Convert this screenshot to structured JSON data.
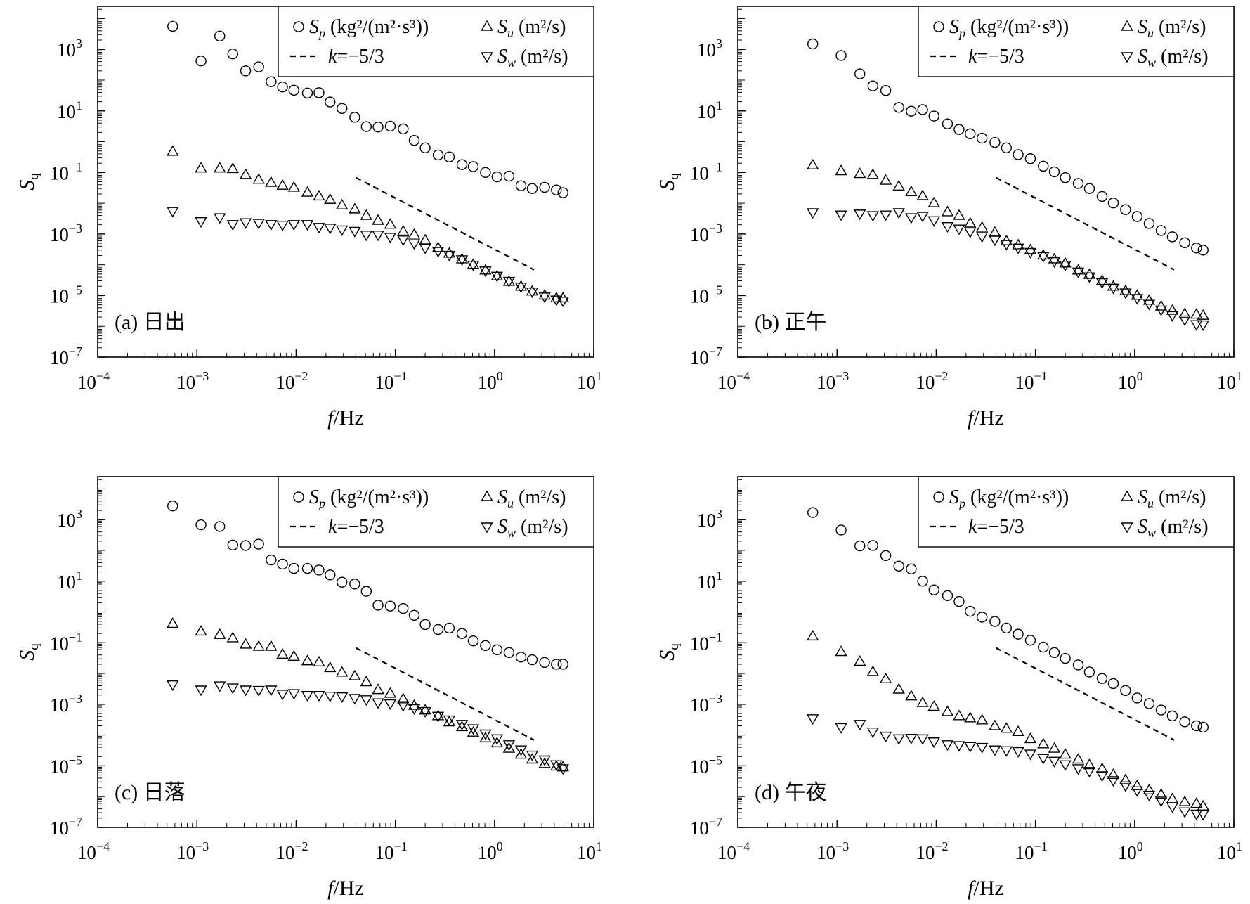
{
  "colors": {
    "marker": "#000000",
    "axes": "#000000",
    "background": "#ffffff"
  },
  "chart_data": [
    {
      "type": "scatter",
      "panel_label": "(a) 日出",
      "xscale": "log",
      "yscale": "log",
      "xlim": [
        0.0001,
        10
      ],
      "ylim": [
        1e-07,
        25000.0
      ],
      "xlabel": {
        "italic": "f",
        "text": "/Hz"
      },
      "ylabel": {
        "symbol": "S",
        "subscript": "q"
      },
      "x_ticks": [
        0.0001,
        0.001,
        0.01,
        0.1,
        1,
        10
      ],
      "y_ticks": [
        1e-07,
        1e-05,
        0.001,
        0.1,
        10,
        1000
      ],
      "grid": false,
      "legend_position": "top-right",
      "x": [
        0.00057,
        0.0011,
        0.0017,
        0.0023,
        0.0031,
        0.0042,
        0.0056,
        0.0073,
        0.0095,
        0.013,
        0.017,
        0.022,
        0.029,
        0.039,
        0.051,
        0.067,
        0.089,
        0.12,
        0.155,
        0.2,
        0.27,
        0.35,
        0.47,
        0.61,
        0.81,
        1.06,
        1.4,
        1.85,
        2.4,
        3.2,
        4.2,
        4.9
      ],
      "series": [
        {
          "symbol": "S",
          "subscript": "p",
          "unit": "(kg²/(m²·s³))",
          "marker": "circle",
          "values": [
            5600,
            420,
            2700,
            710,
            200,
            270,
            89,
            60,
            47,
            38,
            39,
            19.5,
            12,
            6.2,
            3.1,
            3.0,
            3.2,
            2.6,
            1.1,
            0.63,
            0.37,
            0.32,
            0.18,
            0.155,
            0.1,
            0.072,
            0.076,
            0.037,
            0.03,
            0.033,
            0.027,
            0.022
          ]
        },
        {
          "symbol": "S",
          "subscript": "u",
          "unit": "(m²/s)",
          "marker": "triangle-up",
          "values": [
            0.47,
            0.135,
            0.135,
            0.129,
            0.083,
            0.058,
            0.046,
            0.037,
            0.032,
            0.022,
            0.0166,
            0.0129,
            0.0085,
            0.0063,
            0.0039,
            0.0027,
            0.002,
            0.0012,
            0.00095,
            0.00062,
            0.00035,
            0.00023,
            0.00015,
            0.0001,
            6.5e-05,
            4.2e-05,
            2.8e-05,
            1.95e-05,
            1.35e-05,
            1e-05,
            8.1e-06,
            8.1e-06
          ]
        },
        {
          "symbol": "S",
          "subscript": "w",
          "unit": "(m²/s)",
          "marker": "triangle-down",
          "values": [
            0.0056,
            0.0026,
            0.0035,
            0.0021,
            0.0024,
            0.0023,
            0.0021,
            0.002,
            0.0021,
            0.0021,
            0.0017,
            0.0016,
            0.0014,
            0.00126,
            0.00095,
            0.00095,
            0.00081,
            0.00066,
            0.0005,
            0.00036,
            0.00028,
            0.00021,
            0.00015,
            0.0001,
            6.5e-05,
            4.4e-05,
            3e-05,
            1.95e-05,
            1.35e-05,
            9.3e-06,
            7.4e-06,
            6.8e-06
          ]
        }
      ],
      "reference_line": {
        "symbol": "k",
        "text": "=−5/3",
        "x": [
          0.04,
          2.5
        ],
        "y": [
          0.068,
          6.9e-05
        ],
        "style": "dashed"
      }
    },
    {
      "type": "scatter",
      "panel_label": "(b) 正午",
      "xscale": "log",
      "yscale": "log",
      "xlim": [
        0.0001,
        10
      ],
      "ylim": [
        1e-07,
        25000.0
      ],
      "xlabel": {
        "italic": "f",
        "text": "/Hz"
      },
      "ylabel": {
        "symbol": "S",
        "subscript": "q"
      },
      "x_ticks": [
        0.0001,
        0.001,
        0.01,
        0.1,
        1,
        10
      ],
      "y_ticks": [
        1e-07,
        1e-05,
        0.001,
        0.1,
        10,
        1000
      ],
      "grid": false,
      "legend_position": "top-right",
      "x": [
        0.00057,
        0.0011,
        0.0017,
        0.0023,
        0.0031,
        0.0042,
        0.0056,
        0.0073,
        0.0095,
        0.013,
        0.017,
        0.022,
        0.029,
        0.039,
        0.051,
        0.067,
        0.089,
        0.12,
        0.155,
        0.2,
        0.27,
        0.35,
        0.47,
        0.61,
        0.81,
        1.06,
        1.4,
        1.85,
        2.4,
        3.2,
        4.2,
        4.9
      ],
      "series": [
        {
          "symbol": "S",
          "subscript": "p",
          "unit": "(kg²/(m²·s³))",
          "marker": "circle",
          "values": [
            1500,
            630,
            160,
            65,
            46,
            13,
            9.8,
            11,
            6.8,
            3.8,
            2.5,
            1.8,
            1.3,
            0.95,
            0.63,
            0.38,
            0.28,
            0.16,
            0.105,
            0.068,
            0.044,
            0.03,
            0.0166,
            0.0102,
            0.0062,
            0.0037,
            0.0022,
            0.0013,
            0.00081,
            0.00052,
            0.00035,
            0.0003
          ]
        },
        {
          "symbol": "S",
          "subscript": "u",
          "unit": "(m²/s)",
          "marker": "triangle-up",
          "values": [
            0.17,
            0.11,
            0.089,
            0.083,
            0.054,
            0.035,
            0.023,
            0.017,
            0.01,
            0.0051,
            0.0039,
            0.0022,
            0.0016,
            0.0011,
            0.00058,
            0.00043,
            0.0003,
            0.0002,
            0.00015,
            0.00011,
            6.5e-05,
            4.7e-05,
            3e-05,
            1.95e-05,
            1.4e-05,
            9.8e-06,
            6.8e-06,
            4.4e-06,
            3.2e-06,
            2.5e-06,
            2.4e-06,
            2.2e-06
          ]
        },
        {
          "symbol": "S",
          "subscript": "w",
          "unit": "(m²/s)",
          "marker": "triangle-down",
          "values": [
            0.0051,
            0.0043,
            0.0046,
            0.0041,
            0.0043,
            0.0051,
            0.0035,
            0.0039,
            0.0028,
            0.0018,
            0.0015,
            0.0012,
            0.00085,
            0.00066,
            0.00047,
            0.00036,
            0.00026,
            0.00019,
            0.00013,
            0.0001,
            6e-05,
            4.2e-05,
            2.7e-05,
            1.8e-05,
            1.26e-05,
            8.3e-06,
            5.4e-06,
            3.5e-06,
            2.3e-06,
            1.66e-06,
            1.17e-06,
            1.15e-06
          ]
        }
      ],
      "reference_line": {
        "symbol": "k",
        "text": "=−5/3",
        "x": [
          0.04,
          2.5
        ],
        "y": [
          0.068,
          6.9e-05
        ],
        "style": "dashed"
      }
    },
    {
      "type": "scatter",
      "panel_label": "(c) 日落",
      "xscale": "log",
      "yscale": "log",
      "xlim": [
        0.0001,
        10
      ],
      "ylim": [
        1e-07,
        25000.0
      ],
      "xlabel": {
        "italic": "f",
        "text": "/Hz"
      },
      "ylabel": {
        "symbol": "S",
        "subscript": "q"
      },
      "x_ticks": [
        0.0001,
        0.001,
        0.01,
        0.1,
        1,
        10
      ],
      "y_ticks": [
        1e-07,
        1e-05,
        0.001,
        0.1,
        10,
        1000
      ],
      "grid": false,
      "legend_position": "top-right",
      "x": [
        0.00057,
        0.0011,
        0.0017,
        0.0023,
        0.0031,
        0.0042,
        0.0056,
        0.0073,
        0.0095,
        0.013,
        0.017,
        0.022,
        0.029,
        0.039,
        0.051,
        0.067,
        0.089,
        0.12,
        0.155,
        0.2,
        0.27,
        0.35,
        0.47,
        0.61,
        0.81,
        1.06,
        1.4,
        1.85,
        2.4,
        3.2,
        4.2,
        4.9
      ],
      "series": [
        {
          "symbol": "S",
          "subscript": "p",
          "unit": "(kg²/(m²·s³))",
          "marker": "circle",
          "values": [
            2800,
            680,
            600,
            150,
            145,
            160,
            49,
            36,
            26,
            26,
            23,
            16,
            9.3,
            8.1,
            4.7,
            1.66,
            1.55,
            1.3,
            0.78,
            0.39,
            0.27,
            0.3,
            0.2,
            0.115,
            0.081,
            0.059,
            0.048,
            0.034,
            0.028,
            0.023,
            0.02,
            0.02
          ]
        },
        {
          "symbol": "S",
          "subscript": "u",
          "unit": "(m²/s)",
          "marker": "triangle-up",
          "values": [
            0.41,
            0.23,
            0.18,
            0.14,
            0.087,
            0.074,
            0.074,
            0.041,
            0.035,
            0.025,
            0.023,
            0.015,
            0.0107,
            0.0081,
            0.0052,
            0.0029,
            0.0022,
            0.00145,
            0.00089,
            0.00063,
            0.00041,
            0.00026,
            0.00018,
            0.00012,
            7.8e-05,
            5.4e-05,
            3.6e-05,
            2.3e-05,
            1.6e-05,
            1.15e-05,
            9.5e-06,
            8.9e-06
          ]
        },
        {
          "symbol": "S",
          "subscript": "w",
          "unit": "(m²/s)",
          "marker": "triangle-down",
          "values": [
            0.0044,
            0.003,
            0.0041,
            0.0035,
            0.003,
            0.0029,
            0.003,
            0.0022,
            0.0023,
            0.002,
            0.002,
            0.0019,
            0.0018,
            0.0016,
            0.00145,
            0.00115,
            0.00107,
            0.00093,
            0.00074,
            0.0006,
            0.00042,
            0.00032,
            0.00023,
            0.000166,
            0.000112,
            7.8e-05,
            5e-05,
            3.4e-05,
            2.3e-05,
            1.6e-05,
            1.12e-05,
            8.3e-06
          ]
        }
      ],
      "reference_line": {
        "symbol": "k",
        "text": "=−5/3",
        "x": [
          0.04,
          2.5
        ],
        "y": [
          0.068,
          6.9e-05
        ],
        "style": "dashed"
      }
    },
    {
      "type": "scatter",
      "panel_label": "(d) 午夜",
      "xscale": "log",
      "yscale": "log",
      "xlim": [
        0.0001,
        10
      ],
      "ylim": [
        1e-07,
        25000.0
      ],
      "xlabel": {
        "italic": "f",
        "text": "/Hz"
      },
      "ylabel": {
        "symbol": "S",
        "subscript": "q"
      },
      "x_ticks": [
        0.0001,
        0.001,
        0.01,
        0.1,
        1,
        10
      ],
      "y_ticks": [
        1e-07,
        1e-05,
        0.001,
        0.1,
        10,
        1000
      ],
      "grid": false,
      "legend_position": "top-right",
      "x": [
        0.00057,
        0.0011,
        0.0017,
        0.0023,
        0.0031,
        0.0042,
        0.0056,
        0.0073,
        0.0095,
        0.013,
        0.017,
        0.022,
        0.029,
        0.039,
        0.051,
        0.067,
        0.089,
        0.12,
        0.155,
        0.2,
        0.27,
        0.35,
        0.47,
        0.61,
        0.81,
        1.06,
        1.4,
        1.85,
        2.4,
        3.2,
        4.2,
        4.9
      ],
      "series": [
        {
          "symbol": "S",
          "subscript": "p",
          "unit": "(kg²/(m²·s³))",
          "marker": "circle",
          "values": [
            1700,
            460,
            140,
            145,
            68,
            31,
            25,
            10,
            5.2,
            3.4,
            2.2,
            1.05,
            0.68,
            0.49,
            0.3,
            0.19,
            0.12,
            0.072,
            0.048,
            0.031,
            0.019,
            0.0112,
            0.0069,
            0.0047,
            0.0028,
            0.0016,
            0.00105,
            0.00065,
            0.00042,
            0.00027,
            0.0002,
            0.00018
          ]
        },
        {
          "symbol": "S",
          "subscript": "u",
          "unit": "(m²/s)",
          "marker": "triangle-up",
          "values": [
            0.16,
            0.05,
            0.024,
            0.0112,
            0.0065,
            0.003,
            0.0018,
            0.0011,
            0.00083,
            0.00056,
            0.00041,
            0.00035,
            0.0003,
            0.000195,
            0.00016,
            0.000126,
            7.4e-05,
            5e-05,
            3.6e-05,
            2.3e-05,
            1.6e-05,
            1.05e-05,
            7.9e-06,
            5.1e-06,
            3.4e-06,
            2.2e-06,
            1.6e-06,
            1.15e-06,
            8.3e-07,
            6.6e-07,
            5.8e-07,
            4.8e-07
          ]
        },
        {
          "symbol": "S",
          "subscript": "w",
          "unit": "(m²/s)",
          "marker": "triangle-down",
          "values": [
            0.00035,
            0.00018,
            0.00023,
            0.00013,
            9.5e-05,
            7.8e-05,
            8.1e-05,
            7.8e-05,
            6.2e-05,
            5e-05,
            4.7e-05,
            4.4e-05,
            4.1e-05,
            3.4e-05,
            3.2e-05,
            3e-05,
            2.5e-05,
            1.8e-05,
            1.45e-05,
            1.12e-05,
            8.3e-06,
            6.8e-06,
            4.9e-06,
            3.4e-06,
            2.3e-06,
            1.6e-06,
            1.15e-06,
            7.4e-07,
            4.8e-07,
            3.3e-07,
            2.8e-07,
            2.7e-07
          ]
        }
      ],
      "reference_line": {
        "symbol": "k",
        "text": "=−5/3",
        "x": [
          0.04,
          2.5
        ],
        "y": [
          0.068,
          6.9e-05
        ],
        "style": "dashed"
      }
    }
  ]
}
